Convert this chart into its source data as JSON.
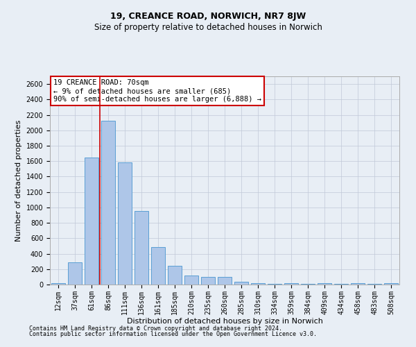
{
  "title": "19, CREANCE ROAD, NORWICH, NR7 8JW",
  "subtitle": "Size of property relative to detached houses in Norwich",
  "xlabel": "Distribution of detached houses by size in Norwich",
  "ylabel": "Number of detached properties",
  "categories": [
    "12sqm",
    "37sqm",
    "61sqm",
    "86sqm",
    "111sqm",
    "136sqm",
    "161sqm",
    "185sqm",
    "210sqm",
    "235sqm",
    "260sqm",
    "285sqm",
    "310sqm",
    "334sqm",
    "359sqm",
    "384sqm",
    "409sqm",
    "434sqm",
    "458sqm",
    "483sqm",
    "508sqm"
  ],
  "values": [
    20,
    290,
    1650,
    2120,
    1580,
    950,
    490,
    240,
    115,
    100,
    100,
    40,
    15,
    5,
    20,
    5,
    15,
    5,
    20,
    5,
    20
  ],
  "bar_color": "#aec6e8",
  "bar_edge_color": "#5a9fd4",
  "background_color": "#e8eef5",
  "red_line_x": 2.5,
  "annotation_line1": "19 CREANCE ROAD: 70sqm",
  "annotation_line2": "← 9% of detached houses are smaller (685)",
  "annotation_line3": "90% of semi-detached houses are larger (6,888) →",
  "annotation_box_color": "#ffffff",
  "annotation_box_edge": "#cc0000",
  "footer1": "Contains HM Land Registry data © Crown copyright and database right 2024.",
  "footer2": "Contains public sector information licensed under the Open Government Licence v3.0.",
  "ylim": [
    0,
    2700
  ],
  "yticks": [
    0,
    200,
    400,
    600,
    800,
    1000,
    1200,
    1400,
    1600,
    1800,
    2000,
    2200,
    2400,
    2600
  ],
  "title_fontsize": 9,
  "subtitle_fontsize": 8.5,
  "ylabel_fontsize": 8,
  "xlabel_fontsize": 8,
  "tick_fontsize": 7,
  "annot_fontsize": 7.5,
  "footer_fontsize": 6
}
